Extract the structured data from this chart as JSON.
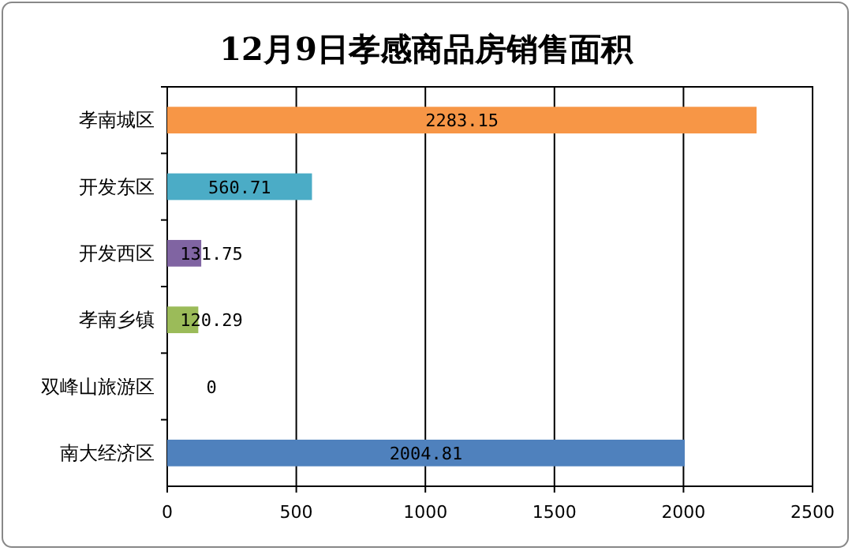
{
  "chart_data": {
    "type": "bar",
    "orientation": "horizontal",
    "title": "12月9日孝感商品房销售面积",
    "categories": [
      "孝南城区",
      "开发东区",
      "开发西区",
      "孝南乡镇",
      "双峰山旅游区",
      "南大经济区"
    ],
    "values": [
      2283.15,
      560.71,
      131.75,
      120.29,
      0,
      2004.81
    ],
    "colors": [
      "#f79646",
      "#4bacc6",
      "#8064a2",
      "#9bbb59",
      "#c0504d",
      "#4f81bd"
    ],
    "xlim": [
      0,
      2500
    ],
    "xticks": [
      0,
      500,
      1000,
      1500,
      2000,
      2500
    ],
    "grid": "x",
    "data_labels": true
  }
}
